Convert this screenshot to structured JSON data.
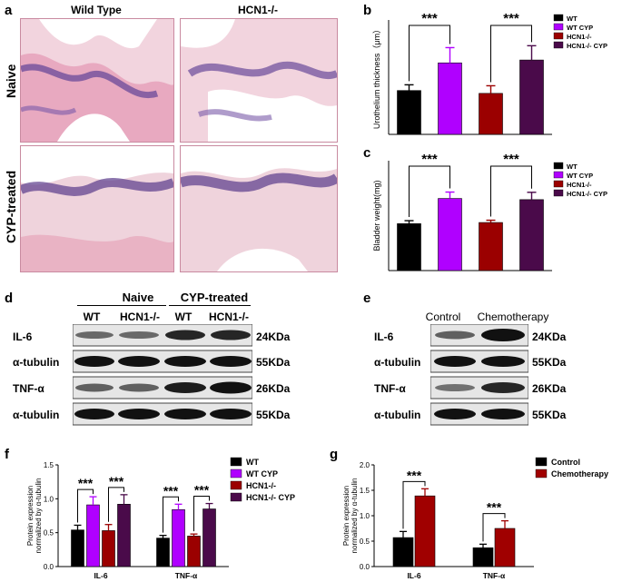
{
  "panels": {
    "a": {
      "letter": "a",
      "col_headers": [
        "Wild Type",
        "HCN1-/-"
      ],
      "row_labels": [
        "Naive",
        "CYP-treated"
      ]
    },
    "d": {
      "letter": "d",
      "group_headers": [
        "Naive",
        "CYP-treated"
      ],
      "lane_labels": [
        "WT",
        "HCN1-/-",
        "WT",
        "HCN1-/-"
      ],
      "rows": [
        {
          "label": "IL-6",
          "size": "24KDa"
        },
        {
          "label": "α-tubulin",
          "size": "55KDa"
        },
        {
          "label": "TNF-α",
          "size": "26KDa"
        },
        {
          "label": "α-tubulin",
          "size": "55KDa"
        }
      ]
    },
    "e": {
      "letter": "e",
      "lane_labels": [
        "Control",
        "Chemotherapy"
      ],
      "rows": [
        {
          "label": "IL-6",
          "size": "24KDa"
        },
        {
          "label": "α-tubulin",
          "size": "55KDa"
        },
        {
          "label": "TNF-α",
          "size": "26KDa"
        },
        {
          "label": "α-tubulin",
          "size": "55KDa"
        }
      ]
    }
  },
  "colors": {
    "WT": "#000000",
    "WT CYP": "#b000ff",
    "HCN1-/-": "#9b0000",
    "HCN1-/- CYP": "#4a0a4a",
    "Control": "#000000",
    "Chemotherapy": "#a00000"
  },
  "chart_data": [
    {
      "id": "b",
      "letter": "b",
      "type": "bar",
      "ylabel": "Urothelium thickness（μm）",
      "ylim": [
        0,
        120
      ],
      "legend": [
        "WT",
        "WT CYP",
        "HCN1-/-",
        "HCN1-/- CYP"
      ],
      "values": [
        46,
        75,
        43,
        78
      ],
      "errors": [
        6,
        16,
        8,
        15
      ],
      "significance": [
        {
          "pair": [
            0,
            1
          ],
          "label": "***"
        },
        {
          "pair": [
            2,
            3
          ],
          "label": "***"
        }
      ]
    },
    {
      "id": "c",
      "letter": "c",
      "type": "bar",
      "ylabel": "Bladder weight(mg)",
      "ylim": [
        0,
        48
      ],
      "legend": [
        "WT",
        "WT CYP",
        "HCN1-/-",
        "HCN1-/- CYP"
      ],
      "values": [
        20.5,
        31.5,
        21,
        31
      ],
      "errors": [
        1.3,
        2.8,
        1,
        3.2
      ],
      "significance": [
        {
          "pair": [
            0,
            1
          ],
          "label": "***"
        },
        {
          "pair": [
            2,
            3
          ],
          "label": "***"
        }
      ]
    },
    {
      "id": "f",
      "letter": "f",
      "type": "bar",
      "ylabel": "Protein expression normalized by α-tubulin",
      "ylim": [
        0,
        1.5
      ],
      "yticks": [
        "0.0",
        "0.5",
        "1.0",
        "1.5"
      ],
      "categories": [
        "IL-6",
        "TNF-α"
      ],
      "legend": [
        "WT",
        "WT CYP",
        "HCN1-/-",
        "HCN1-/- CYP"
      ],
      "series": [
        {
          "name": "WT",
          "values": [
            0.54,
            0.42
          ],
          "errors": [
            0.07,
            0.04
          ]
        },
        {
          "name": "WT CYP",
          "values": [
            0.91,
            0.84
          ],
          "errors": [
            0.12,
            0.08
          ]
        },
        {
          "name": "HCN1-/-",
          "values": [
            0.53,
            0.45
          ],
          "errors": [
            0.09,
            0.03
          ]
        },
        {
          "name": "HCN1-/- CYP",
          "values": [
            0.92,
            0.85
          ],
          "errors": [
            0.14,
            0.08
          ]
        }
      ],
      "significance_label": "***"
    },
    {
      "id": "g",
      "letter": "g",
      "type": "bar",
      "ylabel": "Protein expression normalized by α-tubulin",
      "ylim": [
        0,
        2.0
      ],
      "yticks": [
        "0.0",
        "0.5",
        "1.0",
        "1.5",
        "2.0"
      ],
      "categories": [
        "IL-6",
        "TNF-α"
      ],
      "legend": [
        "Control",
        "Chemotherapy"
      ],
      "series": [
        {
          "name": "Control",
          "values": [
            0.57,
            0.37
          ],
          "errors": [
            0.12,
            0.07
          ]
        },
        {
          "name": "Chemotherapy",
          "values": [
            1.39,
            0.75
          ],
          "errors": [
            0.14,
            0.15
          ]
        }
      ],
      "significance_label": "***"
    }
  ]
}
